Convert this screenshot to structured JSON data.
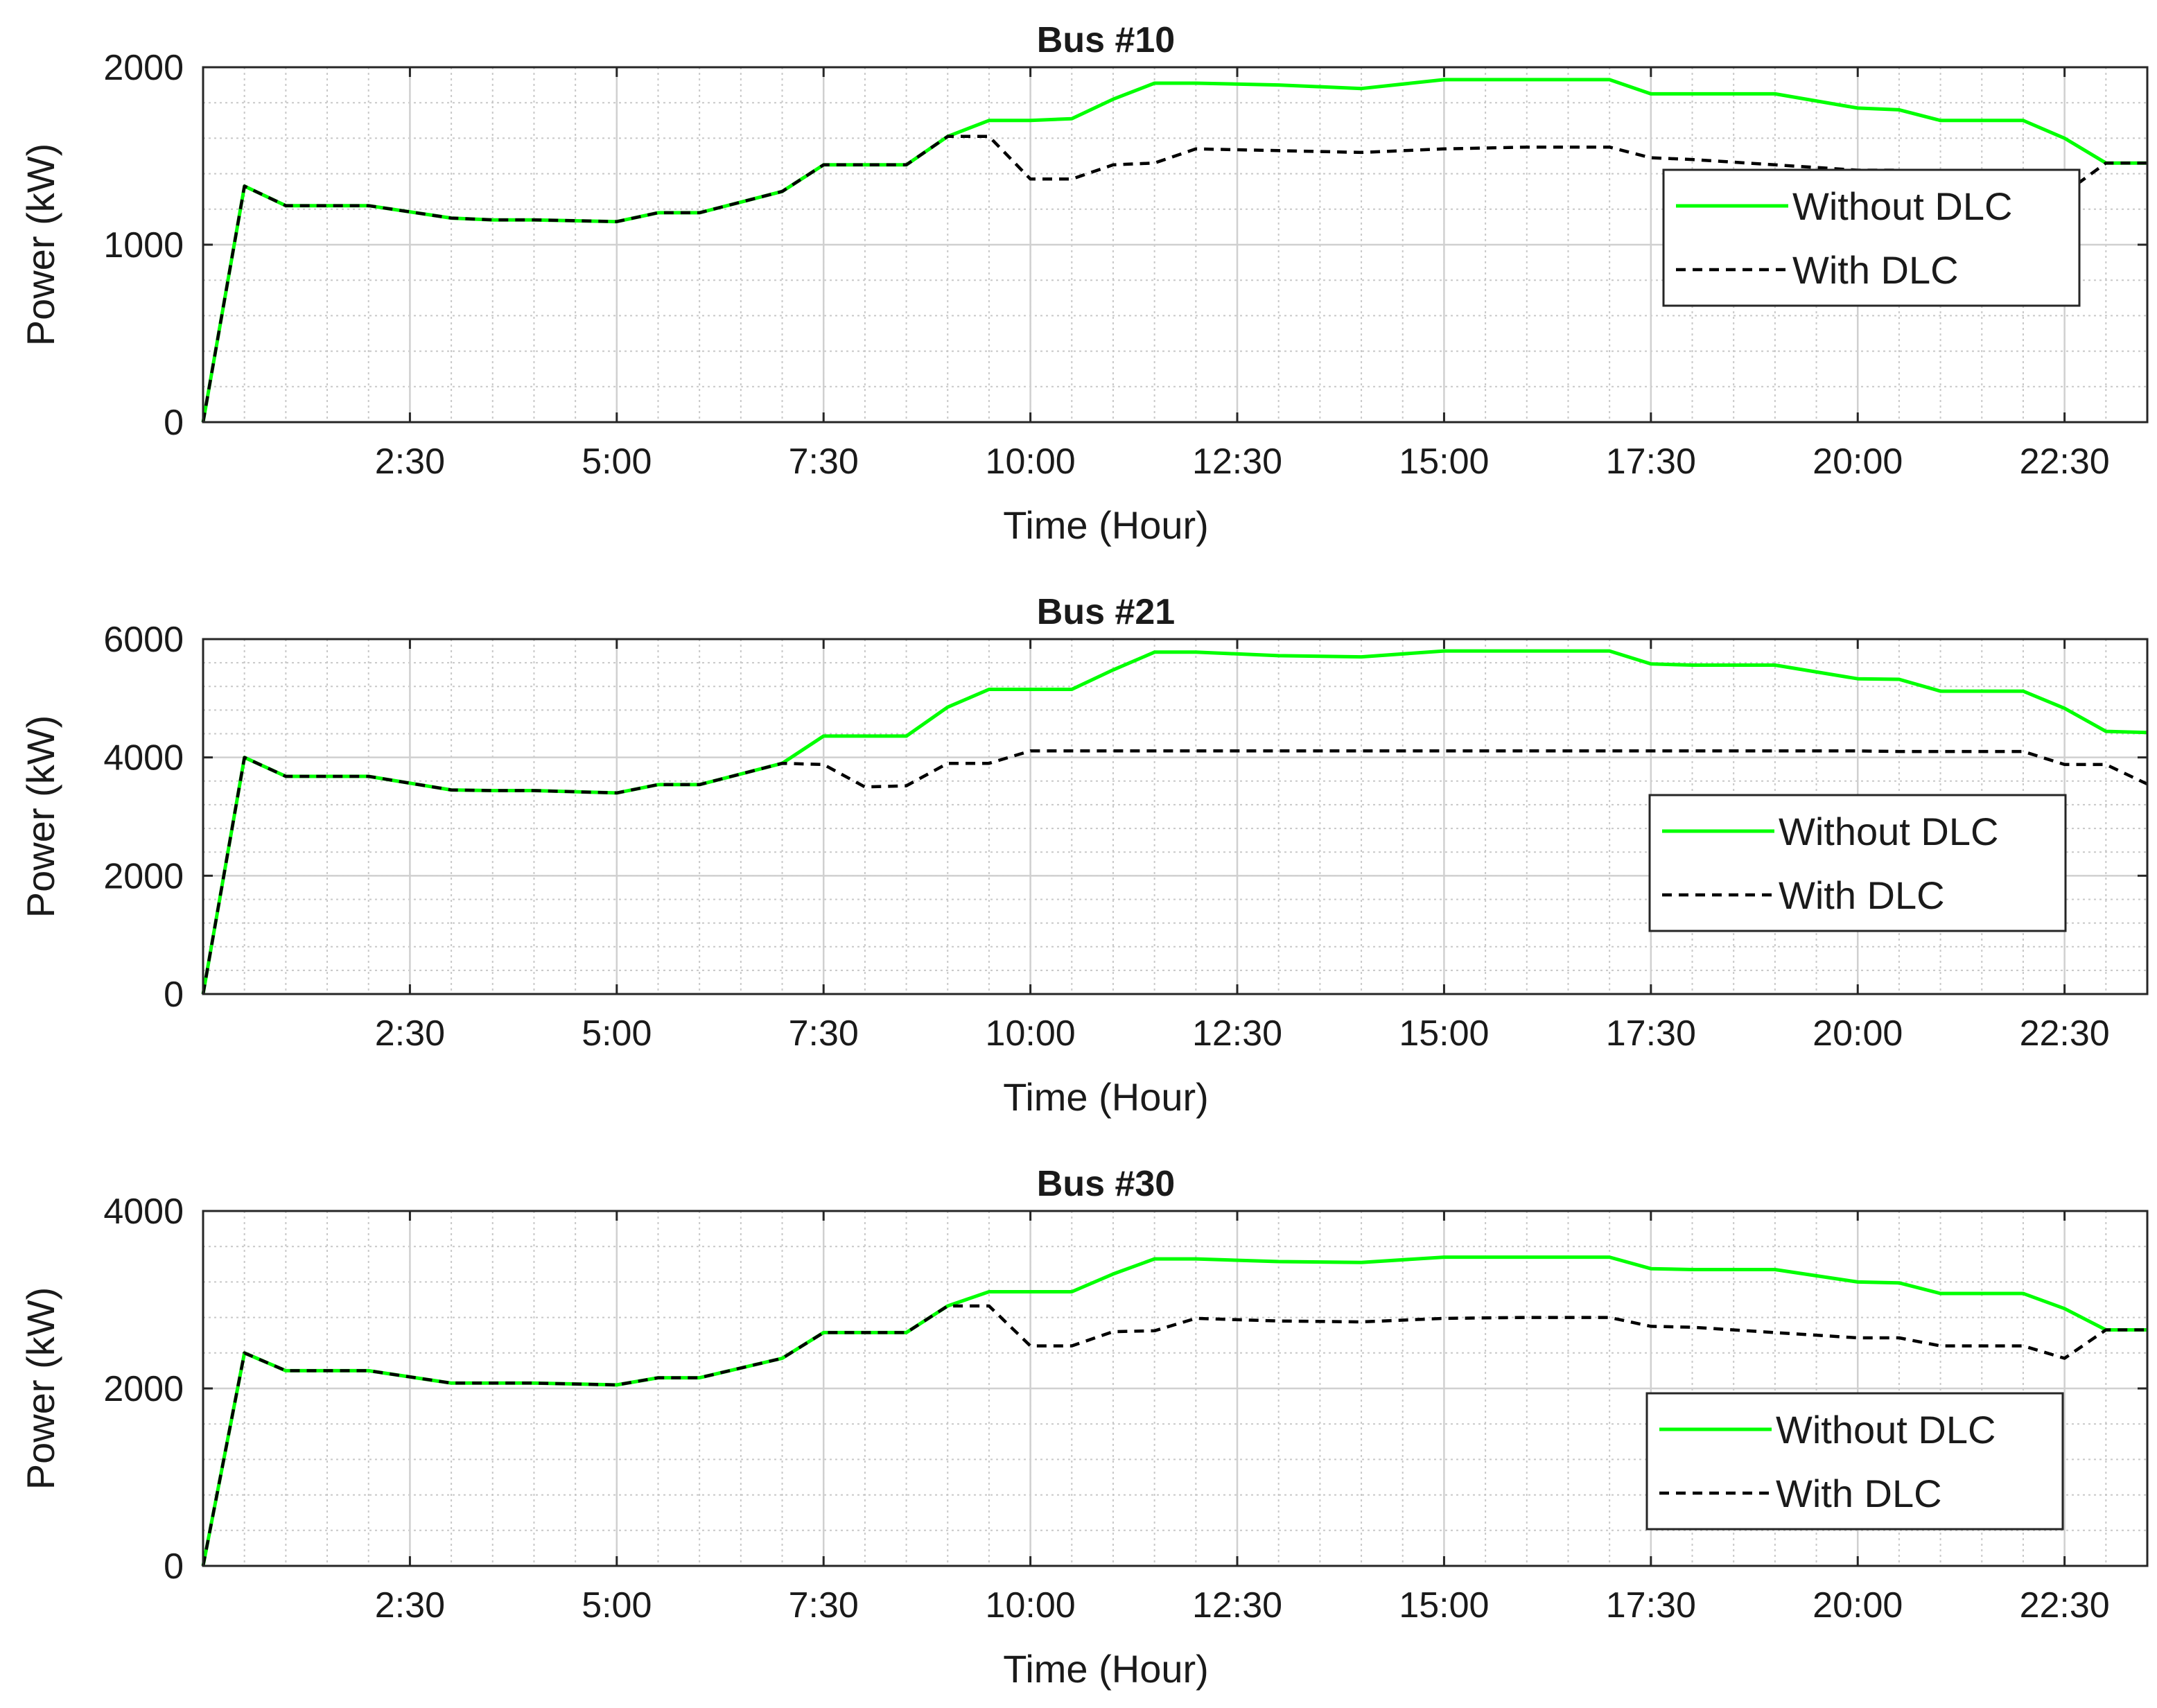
{
  "chart_data": [
    {
      "type": "line",
      "title": "Bus #10",
      "xlabel": "Time (Hour)",
      "ylabel": "Power (kW)",
      "xticklabels": [
        "2:30",
        "5:00",
        "7:30",
        "10:00",
        "12:30",
        "15:00",
        "17:30",
        "20:00",
        "22:30"
      ],
      "xlim": [
        0,
        23.5
      ],
      "ylim": [
        0,
        2000
      ],
      "yticks": [
        "0",
        "1000",
        "2000"
      ],
      "grid": true,
      "legend_position": "right",
      "x": [
        0,
        0.5,
        1,
        2,
        3,
        3.5,
        4,
        5,
        5.5,
        6,
        7,
        7.5,
        8,
        8.5,
        9,
        9.5,
        10,
        10.5,
        11,
        11.5,
        12,
        13,
        14,
        15,
        16,
        17,
        17.5,
        18,
        19,
        20,
        20.5,
        21,
        22,
        22.5,
        23,
        23.5
      ],
      "series": [
        {
          "name": "Without DLC",
          "color": "#00ff00",
          "dash": "solid",
          "values": [
            0,
            1330,
            1220,
            1220,
            1150,
            1140,
            1140,
            1130,
            1180,
            1180,
            1300,
            1450,
            1450,
            1450,
            1610,
            1700,
            1700,
            1710,
            1820,
            1910,
            1910,
            1900,
            1880,
            1930,
            1930,
            1930,
            1850,
            1850,
            1850,
            1770,
            1760,
            1700,
            1700,
            1600,
            1460,
            1460
          ]
        },
        {
          "name": "With DLC",
          "color": "#000000",
          "dash": "dashed",
          "values": [
            0,
            1330,
            1220,
            1220,
            1150,
            1140,
            1140,
            1130,
            1180,
            1180,
            1300,
            1450,
            1450,
            1450,
            1610,
            1610,
            1370,
            1370,
            1450,
            1460,
            1540,
            1530,
            1520,
            1540,
            1550,
            1550,
            1490,
            1480,
            1450,
            1420,
            1420,
            1370,
            1370,
            1290,
            1460,
            1460
          ]
        }
      ]
    },
    {
      "type": "line",
      "title": "Bus #21",
      "xlabel": "Time (Hour)",
      "ylabel": "Power (kW)",
      "xticklabels": [
        "2:30",
        "5:00",
        "7:30",
        "10:00",
        "12:30",
        "15:00",
        "17:30",
        "20:00",
        "22:30"
      ],
      "xlim": [
        0,
        23.5
      ],
      "ylim": [
        0,
        6000
      ],
      "yticks": [
        "0",
        "2000",
        "4000",
        "6000"
      ],
      "grid": true,
      "legend_position": "right",
      "x": [
        0,
        0.5,
        1,
        2,
        3,
        3.5,
        4,
        5,
        5.5,
        6,
        7,
        7.5,
        8,
        8.5,
        9,
        9.5,
        10,
        10.5,
        11,
        11.5,
        12,
        13,
        14,
        15,
        16,
        17,
        17.5,
        18,
        19,
        20,
        20.5,
        21,
        22,
        22.5,
        23,
        23.5
      ],
      "series": [
        {
          "name": "Without DLC",
          "color": "#00ff00",
          "dash": "solid",
          "values": [
            0,
            4000,
            3680,
            3680,
            3450,
            3440,
            3440,
            3400,
            3540,
            3540,
            3900,
            4360,
            4360,
            4360,
            4850,
            5150,
            5150,
            5150,
            5480,
            5780,
            5780,
            5720,
            5700,
            5800,
            5800,
            5800,
            5580,
            5560,
            5560,
            5330,
            5320,
            5120,
            5120,
            4830,
            4440,
            4420
          ]
        },
        {
          "name": "With DLC",
          "color": "#000000",
          "dash": "dashed",
          "values": [
            0,
            4000,
            3680,
            3680,
            3450,
            3440,
            3440,
            3400,
            3540,
            3540,
            3900,
            3880,
            3500,
            3520,
            3900,
            3900,
            4110,
            4110,
            4110,
            4110,
            4110,
            4110,
            4110,
            4110,
            4110,
            4110,
            4110,
            4110,
            4110,
            4110,
            4100,
            4100,
            4100,
            3880,
            3880,
            3550
          ]
        }
      ]
    },
    {
      "type": "line",
      "title": "Bus #30",
      "xlabel": "Time (Hour)",
      "ylabel": "Power (kW)",
      "xticklabels": [
        "2:30",
        "5:00",
        "7:30",
        "10:00",
        "12:30",
        "15:00",
        "17:30",
        "20:00",
        "22:30"
      ],
      "xlim": [
        0,
        23.5
      ],
      "ylim": [
        0,
        4000
      ],
      "yticks": [
        "0",
        "2000",
        "4000"
      ],
      "grid": true,
      "legend_position": "right",
      "x": [
        0,
        0.5,
        1,
        2,
        3,
        3.5,
        4,
        5,
        5.5,
        6,
        7,
        7.5,
        8,
        8.5,
        9,
        9.5,
        10,
        10.5,
        11,
        11.5,
        12,
        13,
        14,
        15,
        16,
        17,
        17.5,
        18,
        19,
        20,
        20.5,
        21,
        22,
        22.5,
        23,
        23.5
      ],
      "series": [
        {
          "name": "Without DLC",
          "color": "#00ff00",
          "dash": "solid",
          "values": [
            0,
            2400,
            2200,
            2200,
            2060,
            2060,
            2060,
            2040,
            2120,
            2120,
            2340,
            2630,
            2630,
            2630,
            2930,
            3090,
            3090,
            3090,
            3290,
            3460,
            3460,
            3430,
            3420,
            3480,
            3480,
            3480,
            3350,
            3340,
            3340,
            3200,
            3190,
            3070,
            3070,
            2900,
            2660,
            2660
          ]
        },
        {
          "name": "With DLC",
          "color": "#000000",
          "dash": "dashed",
          "values": [
            0,
            2400,
            2200,
            2200,
            2060,
            2060,
            2060,
            2040,
            2120,
            2120,
            2340,
            2630,
            2630,
            2630,
            2930,
            2930,
            2480,
            2480,
            2640,
            2650,
            2790,
            2760,
            2750,
            2790,
            2800,
            2800,
            2700,
            2690,
            2630,
            2570,
            2570,
            2480,
            2480,
            2340,
            2660,
            2660
          ]
        }
      ]
    }
  ]
}
